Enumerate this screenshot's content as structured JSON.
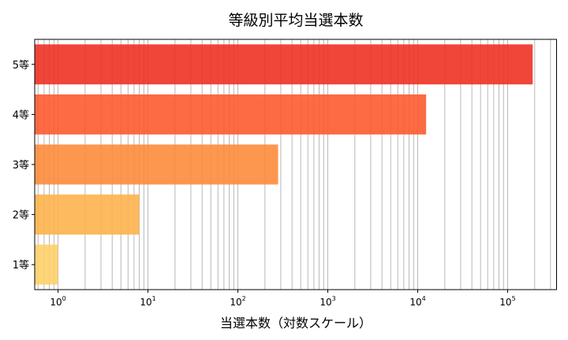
{
  "chart_data": {
    "type": "bar",
    "orientation": "horizontal",
    "title": "等級別平均当選本数",
    "xlabel": "当選本数（対数スケール）",
    "ylabel": "",
    "xscale": "log",
    "xlim": [
      0.55,
      350000
    ],
    "grid": "x (major and minor)",
    "categories": [
      "1等",
      "2等",
      "3等",
      "4等",
      "5等"
    ],
    "values": [
      1,
      8,
      280,
      12400,
      190000
    ],
    "colors": [
      "#FED06A",
      "#FDB24C",
      "#FD8C3C",
      "#FC5B30",
      "#EE3124"
    ],
    "xtick_labels": [
      "10^0",
      "10^1",
      "10^2",
      "10^3",
      "10^4",
      "10^5"
    ]
  }
}
